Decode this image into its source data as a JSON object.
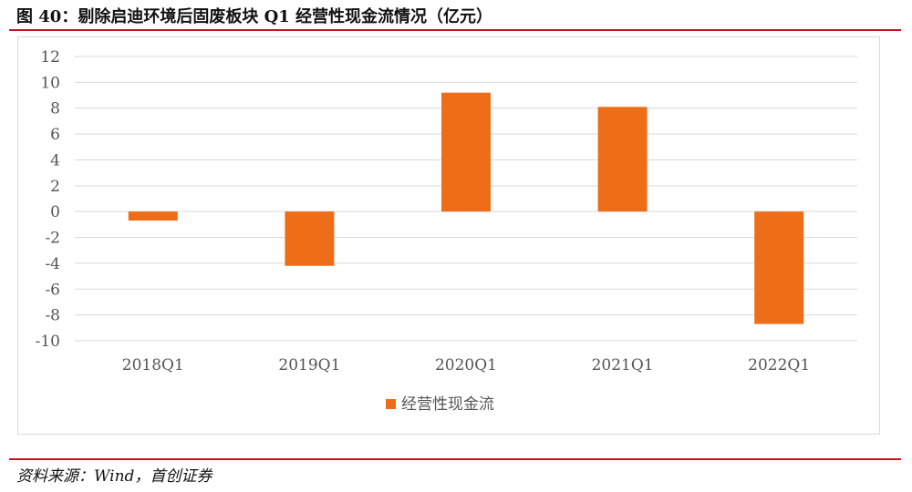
{
  "title": "图 40：剔除启迪环境后固废板块 Q1 经营性现金流情况（亿元）",
  "source": "资料来源：Wind，首创证券",
  "colors": {
    "accent": "#c0161c",
    "bar": "#ee6d19",
    "grid": "#d9d9d9",
    "axis_text": "#555555"
  },
  "chart_data": {
    "type": "bar",
    "title": "",
    "xlabel": "",
    "ylabel": "",
    "categories": [
      "2018Q1",
      "2019Q1",
      "2020Q1",
      "2021Q1",
      "2022Q1"
    ],
    "series": [
      {
        "name": "经营性现金流",
        "values": [
          -0.7,
          -4.2,
          9.2,
          8.1,
          -8.7
        ]
      }
    ],
    "ylim": [
      -10,
      12
    ],
    "yticks": [
      12,
      10,
      8,
      6,
      4,
      2,
      0,
      -2,
      -4,
      -6,
      -8,
      -10
    ],
    "grid": true,
    "legend_position": "bottom"
  }
}
